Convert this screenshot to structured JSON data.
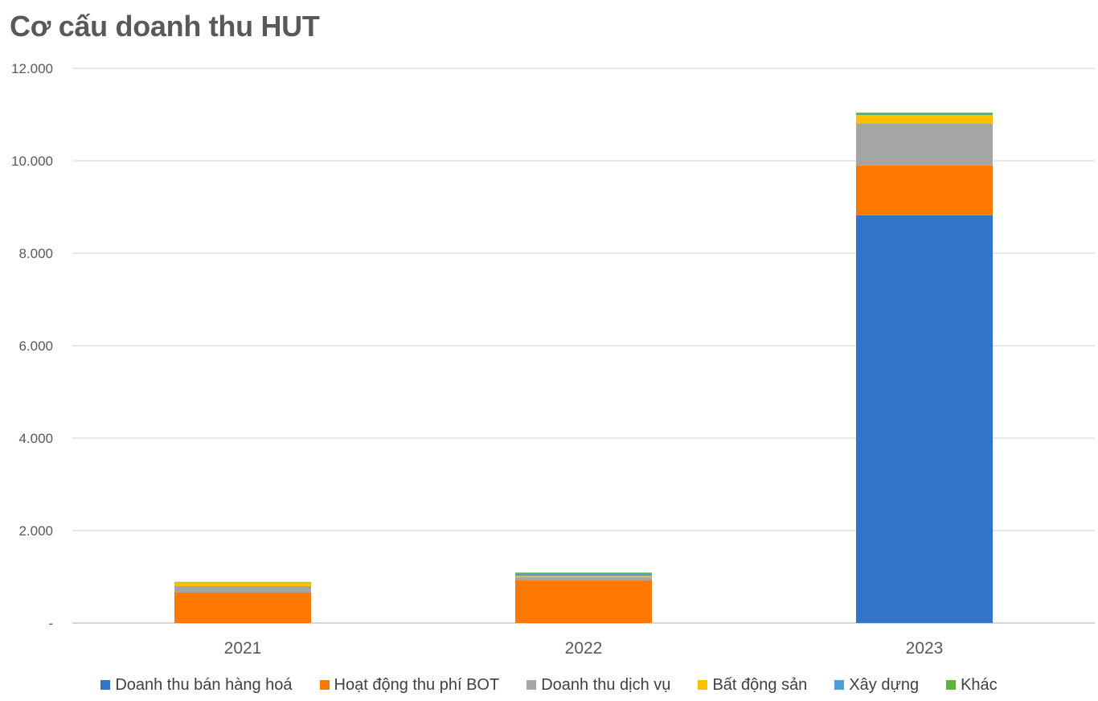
{
  "chart_data": {
    "type": "bar",
    "stacked": true,
    "title": "Cơ cấu doanh thu HUT",
    "xlabel": "",
    "ylabel": "",
    "categories": [
      "2021",
      "2022",
      "2023"
    ],
    "ylim": [
      0,
      12000
    ],
    "yticks": [
      0,
      2000,
      4000,
      6000,
      8000,
      10000,
      12000
    ],
    "ytick_labels": [
      "-",
      "2.000",
      "4.000",
      "6.000",
      "8.000",
      "10.000",
      "12.000"
    ],
    "grid": true,
    "legend_position": "bottom",
    "series": [
      {
        "name": "Doanh thu bán hàng hoá",
        "color": "#3274C8",
        "values": [
          0,
          0,
          8820
        ]
      },
      {
        "name": "Hoạt động thu phí BOT",
        "color": "#FF7800",
        "values": [
          660,
          920,
          1080
        ]
      },
      {
        "name": "Doanh thu dịch vụ",
        "color": "#A5A5A5",
        "values": [
          140,
          70,
          900
        ]
      },
      {
        "name": "Bất động sản",
        "color": "#FFC000",
        "values": [
          80,
          30,
          190
        ]
      },
      {
        "name": "Xây dựng",
        "color": "#4A9FDB",
        "values": [
          0,
          40,
          10
        ]
      },
      {
        "name": "Khác",
        "color": "#62B040",
        "values": [
          10,
          30,
          40
        ]
      }
    ]
  }
}
